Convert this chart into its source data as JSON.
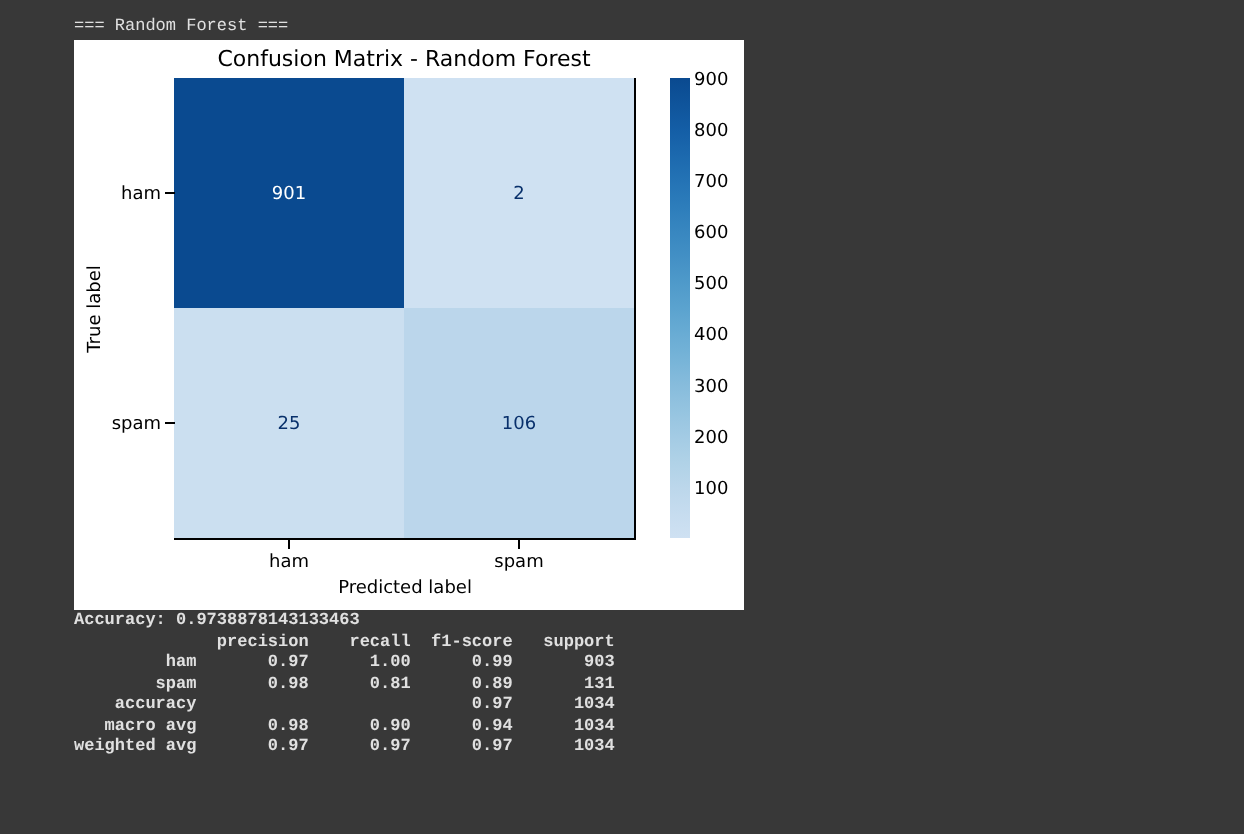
{
  "chart_data": {
    "type": "heatmap",
    "title": "Confusion Matrix - Random Forest",
    "xlabel": "Predicted label",
    "ylabel": "True label",
    "categories": [
      "ham",
      "spam"
    ],
    "y_categories": [
      "ham",
      "spam"
    ],
    "cells": [
      [
        901,
        2
      ],
      [
        25,
        106
      ]
    ],
    "clim": [
      2,
      901
    ],
    "cticks": [
      100,
      200,
      300,
      400,
      500,
      600,
      700,
      800,
      900
    ],
    "data_labels": true,
    "grid": false,
    "annotations": [
      "=== Random Forest ===",
      "Accuracy: 0.9738878143133463",
      "              precision    recall  f1-score   support",
      "         ham       0.97      1.00      0.99       903",
      "        spam       0.98      0.81      0.89       131",
      "    accuracy                           0.97      1034",
      "   macro avg       0.98      0.90      0.94      1034",
      "weighted avg       0.97      0.97      0.97      1034"
    ]
  }
}
